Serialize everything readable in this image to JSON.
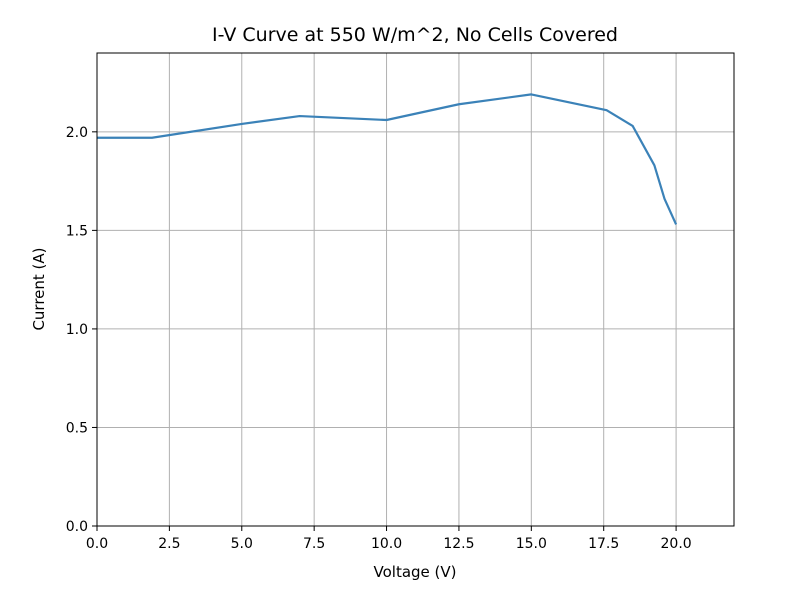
{
  "chart_data": {
    "type": "line",
    "title": "I-V Curve at 550 W/m^2, No Cells Covered",
    "xlabel": "Voltage (V)",
    "ylabel": "Current (A)",
    "xlim": [
      0,
      22
    ],
    "ylim": [
      0,
      2.4
    ],
    "x_ticks": [
      0.0,
      2.5,
      5.0,
      7.5,
      10.0,
      12.5,
      15.0,
      17.5,
      20.0
    ],
    "x_tick_labels": [
      "0.0",
      "2.5",
      "5.0",
      "7.5",
      "10.0",
      "12.5",
      "15.0",
      "17.5",
      "20.0"
    ],
    "y_ticks": [
      0.0,
      0.5,
      1.0,
      1.5,
      2.0
    ],
    "y_tick_labels": [
      "0.0",
      "0.5",
      "1.0",
      "1.5",
      "2.0"
    ],
    "grid": true,
    "series": [
      {
        "color": "#3b82b8",
        "x": [
          0.0,
          1.9,
          5.0,
          7.0,
          10.0,
          12.5,
          15.0,
          17.6,
          18.5,
          19.25,
          19.6,
          20.0
        ],
        "y": [
          1.97,
          1.97,
          2.04,
          2.08,
          2.06,
          2.14,
          2.19,
          2.11,
          2.03,
          1.83,
          1.66,
          1.53
        ]
      }
    ]
  }
}
